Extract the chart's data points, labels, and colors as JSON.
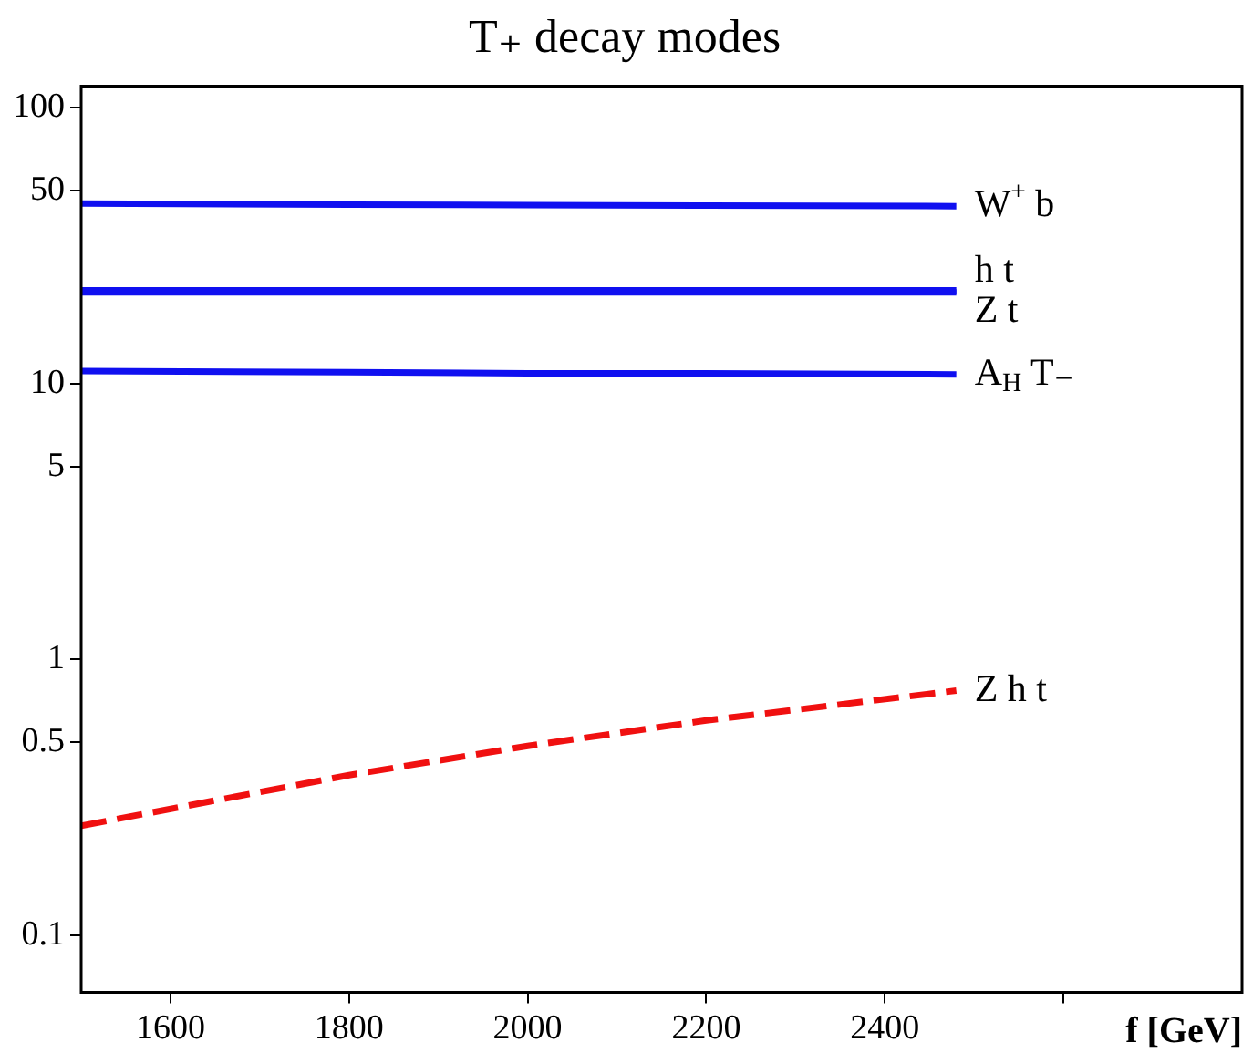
{
  "chart_data": {
    "type": "line",
    "title": "T₊ decay modes",
    "xlabel": "f [GeV]",
    "log": "y",
    "grid": false,
    "x": [
      1500,
      1800,
      2000,
      2200,
      2480
    ],
    "xlim": [
      1500,
      2800
    ],
    "xticks": [
      1600,
      1800,
      2000,
      2200,
      2400,
      {
        "value": 2600,
        "label": null
      }
    ],
    "ylim": [
      0.062,
      120
    ],
    "yticks": [
      0.1,
      0.5,
      1,
      5,
      10,
      50,
      100
    ],
    "series": [
      {
        "name": "W$^{+}$ b",
        "color": "#1010f0",
        "values": [
          45,
          44.6,
          44.4,
          44.2,
          44
        ]
      },
      {
        "name": "h t",
        "color": "#1010f0",
        "values": [
          21.8,
          21.8,
          21.8,
          21.8,
          21.8
        ]
      },
      {
        "name": "Z t",
        "color": "#1010f0",
        "values": [
          21.4,
          21.4,
          21.4,
          21.4,
          21.4
        ]
      },
      {
        "name": "A$_{H}$ T₋",
        "color": "#1010f0",
        "values": [
          11.1,
          11,
          10.9,
          10.9,
          10.8
        ]
      },
      {
        "name": "Z h t",
        "color": "#f01010",
        "line_style": "dashed",
        "values": [
          0.249,
          0.38,
          0.485,
          0.6,
          0.77
        ]
      }
    ]
  }
}
